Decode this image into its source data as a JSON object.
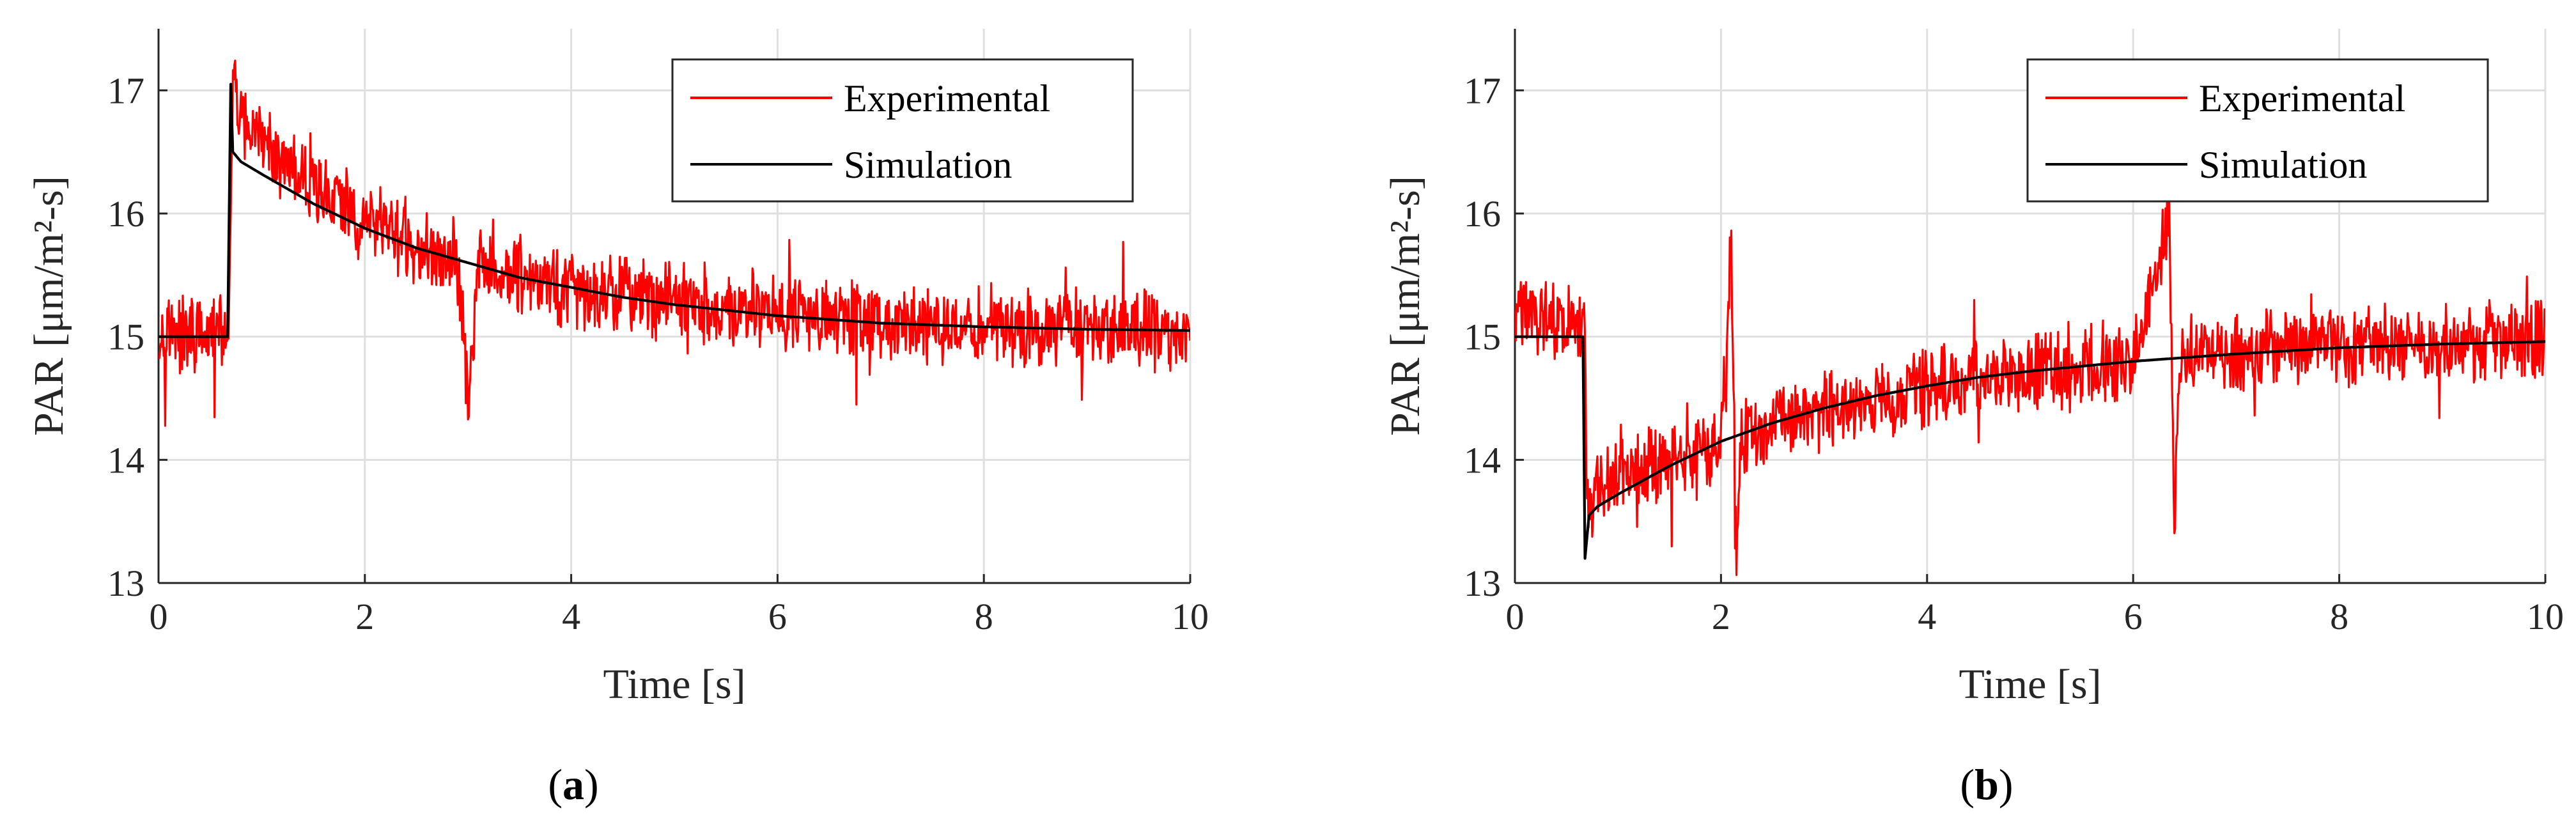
{
  "chart_data": [
    {
      "type": "line",
      "panel": "a",
      "caption_letter": "a",
      "xlabel": "Time [s]",
      "ylabel": "PAR [μm/m²-s]",
      "xlim": [
        0,
        10
      ],
      "ylim": [
        13,
        17.5
      ],
      "xticks": [
        0,
        2,
        4,
        6,
        8,
        10
      ],
      "yticks": [
        13,
        14,
        15,
        16,
        17
      ],
      "grid": true,
      "legend_position": "top-right",
      "series": [
        {
          "name": "Experimental",
          "color": "#ff0000",
          "noisy": true,
          "x": [
            0,
            0.5,
            0.68,
            0.72,
            0.8,
            1.0,
            1.5,
            2.0,
            2.5,
            2.9,
            3.0,
            3.1,
            3.5,
            4.0,
            4.5,
            5.0,
            6.0,
            7.0,
            8.0,
            9.0,
            10.0
          ],
          "y": [
            15.05,
            15.0,
            15.0,
            17.1,
            16.75,
            16.55,
            16.2,
            15.95,
            15.75,
            15.6,
            14.5,
            15.55,
            15.45,
            15.4,
            15.35,
            15.3,
            15.2,
            15.12,
            15.1,
            15.07,
            15.05
          ]
        },
        {
          "name": "Simulation",
          "color": "#000000",
          "noisy": false,
          "x": [
            0,
            0.67,
            0.7,
            0.72,
            0.8,
            1.0,
            1.5,
            2.0,
            2.5,
            3.0,
            3.5,
            4.0,
            4.5,
            5.0,
            6.0,
            7.0,
            8.0,
            9.0,
            10.0
          ],
          "y": [
            15.0,
            15.0,
            17.05,
            16.5,
            16.42,
            16.32,
            16.08,
            15.88,
            15.72,
            15.6,
            15.48,
            15.4,
            15.32,
            15.26,
            15.17,
            15.11,
            15.08,
            15.06,
            15.05
          ]
        }
      ]
    },
    {
      "type": "line",
      "panel": "b",
      "caption_letter": "b",
      "xlabel": "Time [s]",
      "ylabel": "PAR [μm/m²-s]",
      "xlim": [
        0,
        10
      ],
      "ylim": [
        13,
        17.5
      ],
      "xticks": [
        0,
        2,
        4,
        6,
        8,
        10
      ],
      "yticks": [
        13,
        14,
        15,
        16,
        17
      ],
      "grid": true,
      "legend_position": "top-right",
      "series": [
        {
          "name": "Experimental",
          "color": "#ff0000",
          "noisy": true,
          "x": [
            0,
            0.5,
            0.68,
            0.7,
            0.8,
            1.0,
            1.5,
            2.0,
            2.1,
            2.15,
            2.2,
            2.5,
            3.0,
            4.0,
            5.0,
            6.0,
            6.35,
            6.4,
            6.45,
            7.0,
            8.0,
            9.0,
            10.0
          ],
          "y": [
            15.2,
            15.15,
            15.1,
            13.6,
            13.7,
            13.85,
            14.0,
            14.15,
            15.8,
            13.0,
            14.2,
            14.3,
            14.4,
            14.6,
            14.7,
            14.8,
            16.0,
            13.5,
            14.85,
            14.88,
            14.92,
            14.95,
            14.97
          ]
        },
        {
          "name": "Simulation",
          "color": "#000000",
          "noisy": false,
          "x": [
            0,
            0.66,
            0.68,
            0.72,
            0.8,
            1.0,
            1.5,
            2.0,
            2.5,
            3.0,
            3.5,
            4.0,
            4.5,
            5.0,
            6.0,
            7.0,
            8.0,
            9.0,
            10.0
          ],
          "y": [
            15.0,
            15.0,
            13.2,
            13.55,
            13.62,
            13.72,
            13.95,
            14.15,
            14.3,
            14.42,
            14.52,
            14.6,
            14.67,
            14.72,
            14.8,
            14.86,
            14.91,
            14.94,
            14.96
          ]
        }
      ]
    }
  ]
}
